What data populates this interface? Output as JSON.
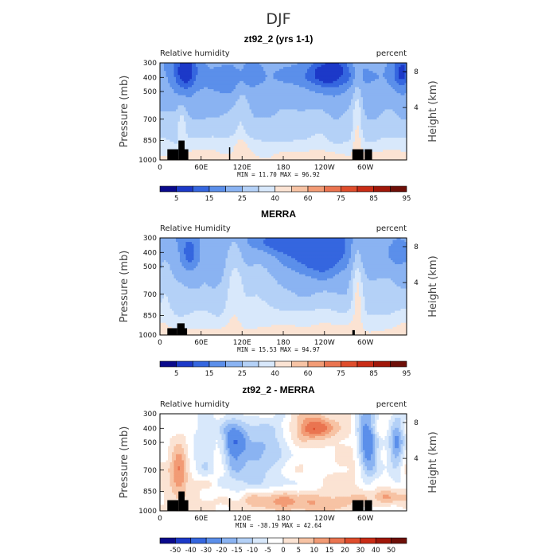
{
  "figure": {
    "title": "DJF"
  },
  "chart_data": [
    {
      "type": "contour",
      "title": "zt92_2 (yrs 1-1)",
      "variable": "Relative humidity",
      "units": "percent",
      "xlabel": "",
      "ylabel": "Pressure (mb)",
      "y2label": "Height (km)",
      "x_ticks": [
        "0",
        "60E",
        "120E",
        "180",
        "120W",
        "60W"
      ],
      "y_ticks": [
        "300",
        "400",
        "500",
        "700",
        "850",
        "1000"
      ],
      "y2_ticks": [
        "8",
        "4"
      ],
      "stats_text": "MIN =   11.70   MAX =   96.92",
      "min": 11.7,
      "max": 96.92,
      "levels": [
        "5",
        "15",
        "25",
        "40",
        "60",
        "75",
        "85",
        "95"
      ],
      "colorbar": [
        "#0a0a8c",
        "#1c39c8",
        "#3566df",
        "#5b8fea",
        "#8ab3f2",
        "#b4d1f7",
        "#d8e8fb",
        "#fbe3d3",
        "#f7c3a4",
        "#f29b75",
        "#ea7450",
        "#df4d2c",
        "#c92c16",
        "#a01709",
        "#6e0f08"
      ]
    },
    {
      "type": "contour",
      "title": "MERRA",
      "variable": "Relative Humidity",
      "units": "percent",
      "xlabel": "",
      "ylabel": "Pressure (mb)",
      "y2label": "Height (km)",
      "x_ticks": [
        "0",
        "60E",
        "120E",
        "180",
        "120W",
        "60W"
      ],
      "y_ticks": [
        "300",
        "400",
        "500",
        "700",
        "850",
        "1000"
      ],
      "y2_ticks": [
        "8",
        "4"
      ],
      "stats_text": "MIN =   15.53   MAX =   94.97",
      "min": 15.53,
      "max": 94.97,
      "levels": [
        "5",
        "15",
        "25",
        "40",
        "60",
        "75",
        "85",
        "95"
      ],
      "colorbar": [
        "#0a0a8c",
        "#1c39c8",
        "#3566df",
        "#5b8fea",
        "#8ab3f2",
        "#b4d1f7",
        "#d8e8fb",
        "#fbe3d3",
        "#f7c3a4",
        "#f29b75",
        "#ea7450",
        "#df4d2c",
        "#c92c16",
        "#a01709",
        "#6e0f08"
      ]
    },
    {
      "type": "contour",
      "title": "zt92_2 - MERRA",
      "variable": "Relative humidity",
      "units": "percent",
      "xlabel": "",
      "ylabel": "Pressure (mb)",
      "y2label": "Height (km)",
      "x_ticks": [
        "0",
        "60E",
        "120E",
        "180",
        "120W",
        "60W"
      ],
      "y_ticks": [
        "300",
        "400",
        "500",
        "700",
        "850",
        "1000"
      ],
      "y2_ticks": [
        "8",
        "4"
      ],
      "stats_text": "MIN =  -38.19   MAX =   42.64",
      "min": -38.19,
      "max": 42.64,
      "levels": [
        "-50",
        "-40",
        "-30",
        "-20",
        "-15",
        "-10",
        "-5",
        "0",
        "5",
        "10",
        "15",
        "20",
        "30",
        "40",
        "50"
      ],
      "colorbar": [
        "#0a0a8c",
        "#1c39c8",
        "#3566df",
        "#5b8fea",
        "#8ab3f2",
        "#b4d1f7",
        "#d8e8fb",
        "#ffffff",
        "#fbe3d3",
        "#f7c3a4",
        "#f29b75",
        "#ea7450",
        "#df4d2c",
        "#c92c16",
        "#a01709",
        "#6e0f08"
      ]
    }
  ]
}
